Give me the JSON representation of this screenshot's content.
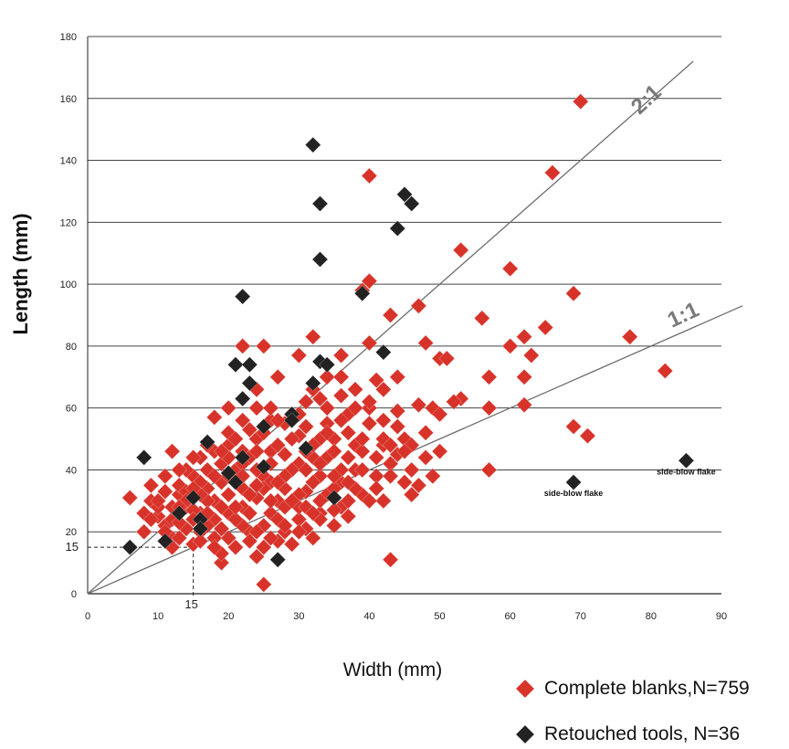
{
  "chart_data": {
    "type": "scatter",
    "xlabel": "Width (mm)",
    "ylabel": "Length (mm)",
    "xlim": [
      0,
      90
    ],
    "ylim": [
      0,
      180
    ],
    "xticks": [
      "0",
      "10",
      "20",
      "30",
      "40",
      "50",
      "60",
      "70",
      "80",
      "90"
    ],
    "yticks": [
      "0",
      "20",
      "40",
      "60",
      "80",
      "100",
      "120",
      "140",
      "160",
      "180"
    ],
    "grid": "horizontal",
    "legend_position": "bottom-right",
    "reference_lines": [
      {
        "label": "2:1",
        "slope": 2
      },
      {
        "label": "1:1",
        "slope": 1
      }
    ],
    "guide": {
      "x": 15,
      "y": 15,
      "xlabel": "15",
      "ylabel": "15"
    },
    "annotations": [
      {
        "text": "side-blow flake",
        "x": 69,
        "y": 36
      },
      {
        "text": "side-blow flake",
        "x": 85,
        "y": 43
      }
    ],
    "colors": {
      "complete": "#d8332a",
      "retouched": "#222222",
      "grid": "#444444",
      "ref_line": "#6d6d6d"
    },
    "series": [
      {
        "name": "Complete blanks,N=759",
        "color": "#d8332a",
        "points": [
          [
            70,
            159
          ],
          [
            40,
            135
          ],
          [
            66,
            136
          ],
          [
            53,
            111
          ],
          [
            60,
            105
          ],
          [
            40,
            101
          ],
          [
            39,
            98
          ],
          [
            69,
            97
          ],
          [
            47,
            93
          ],
          [
            43,
            90
          ],
          [
            56,
            89
          ],
          [
            65,
            86
          ],
          [
            62,
            83
          ],
          [
            77,
            83
          ],
          [
            32,
            83
          ],
          [
            60,
            80
          ],
          [
            22,
            80
          ],
          [
            25,
            80
          ],
          [
            40,
            81
          ],
          [
            48,
            81
          ],
          [
            63,
            77
          ],
          [
            50,
            76
          ],
          [
            51,
            76
          ],
          [
            30,
            77
          ],
          [
            36,
            77
          ],
          [
            82,
            72
          ],
          [
            62,
            70
          ],
          [
            57,
            70
          ],
          [
            44,
            70
          ],
          [
            41,
            69
          ],
          [
            27,
            70
          ],
          [
            34,
            70
          ],
          [
            62,
            61
          ],
          [
            53,
            63
          ],
          [
            57,
            60
          ],
          [
            49,
            60
          ],
          [
            47,
            61
          ],
          [
            44,
            59
          ],
          [
            40,
            60
          ],
          [
            20,
            60
          ],
          [
            69,
            54
          ],
          [
            71,
            51
          ],
          [
            57,
            40
          ],
          [
            43,
            11
          ],
          [
            25,
            3
          ],
          [
            19,
            10
          ],
          [
            42,
            30
          ],
          [
            45,
            36
          ],
          [
            46,
            32
          ],
          [
            43,
            42
          ],
          [
            38,
            48
          ],
          [
            30,
            51
          ],
          [
            36,
            36
          ],
          [
            32,
            44
          ],
          [
            42,
            48
          ],
          [
            20,
            48
          ],
          [
            16,
            44
          ],
          [
            12,
            46
          ],
          [
            9,
            30
          ],
          [
            6,
            31
          ],
          [
            8,
            26
          ],
          [
            23,
            53
          ],
          [
            18,
            57
          ],
          [
            33,
            63
          ],
          [
            24,
            66
          ],
          [
            36,
            70
          ],
          [
            31,
            62
          ],
          [
            28,
            45
          ],
          [
            26,
            46
          ],
          [
            24,
            31
          ],
          [
            21,
            36
          ],
          [
            17,
            34
          ],
          [
            14,
            28
          ],
          [
            11,
            22
          ],
          [
            13,
            32
          ],
          [
            15,
            38
          ],
          [
            19,
            42
          ],
          [
            22,
            28
          ],
          [
            18,
            24
          ],
          [
            16,
            20
          ],
          [
            12,
            18
          ],
          [
            10,
            25
          ],
          [
            14,
            40
          ],
          [
            20,
            32
          ],
          [
            25,
            38
          ],
          [
            30,
            42
          ],
          [
            35,
            50
          ],
          [
            40,
            55
          ],
          [
            38,
            40
          ],
          [
            33,
            38
          ],
          [
            28,
            34
          ],
          [
            26,
            26
          ],
          [
            23,
            20
          ],
          [
            21,
            15
          ],
          [
            18,
            18
          ],
          [
            15,
            16
          ],
          [
            19,
            13
          ],
          [
            22,
            22
          ],
          [
            27,
            30
          ],
          [
            31,
            33
          ],
          [
            34,
            44
          ],
          [
            37,
            52
          ],
          [
            39,
            46
          ],
          [
            41,
            38
          ],
          [
            36,
            28
          ],
          [
            33,
            26
          ],
          [
            30,
            24
          ],
          [
            28,
            20
          ],
          [
            25,
            15
          ],
          [
            24,
            12
          ],
          [
            29,
            16
          ],
          [
            32,
            18
          ],
          [
            35,
            22
          ],
          [
            37,
            25
          ],
          [
            39,
            32
          ],
          [
            44,
            45
          ],
          [
            45,
            50
          ],
          [
            42,
            56
          ],
          [
            37,
            58
          ],
          [
            34,
            55
          ],
          [
            31,
            54
          ],
          [
            29,
            58
          ],
          [
            26,
            56
          ],
          [
            24,
            50
          ],
          [
            22,
            46
          ],
          [
            20,
            44
          ],
          [
            17,
            40
          ],
          [
            16,
            36
          ],
          [
            13,
            35
          ],
          [
            11,
            33
          ],
          [
            9,
            35
          ],
          [
            10,
            28
          ],
          [
            12,
            24
          ],
          [
            14,
            21
          ],
          [
            16,
            26
          ],
          [
            18,
            30
          ],
          [
            20,
            26
          ],
          [
            22,
            34
          ],
          [
            24,
            40
          ],
          [
            26,
            36
          ],
          [
            28,
            28
          ],
          [
            30,
            32
          ],
          [
            32,
            36
          ],
          [
            34,
            32
          ],
          [
            36,
            40
          ],
          [
            38,
            34
          ],
          [
            40,
            30
          ],
          [
            42,
            50
          ],
          [
            44,
            54
          ],
          [
            46,
            48
          ],
          [
            48,
            52
          ],
          [
            50,
            58
          ],
          [
            52,
            62
          ],
          [
            27,
            48
          ],
          [
            29,
            40
          ],
          [
            31,
            46
          ],
          [
            33,
            50
          ],
          [
            35,
            46
          ],
          [
            23,
            44
          ],
          [
            21,
            40
          ],
          [
            19,
            36
          ],
          [
            17,
            30
          ],
          [
            15,
            27
          ],
          [
            13,
            23
          ],
          [
            11,
            20
          ],
          [
            8,
            20
          ],
          [
            9,
            24
          ],
          [
            14,
            33
          ],
          [
            18,
            46
          ],
          [
            20,
            52
          ],
          [
            22,
            56
          ],
          [
            24,
            60
          ],
          [
            26,
            60
          ],
          [
            28,
            55
          ],
          [
            30,
            58
          ],
          [
            32,
            66
          ],
          [
            34,
            60
          ],
          [
            36,
            64
          ],
          [
            38,
            66
          ],
          [
            40,
            62
          ],
          [
            42,
            66
          ],
          [
            30,
            28
          ],
          [
            27,
            24
          ],
          [
            25,
            22
          ],
          [
            23,
            26
          ],
          [
            21,
            24
          ],
          [
            19,
            21
          ],
          [
            17,
            22
          ],
          [
            15,
            24
          ],
          [
            13,
            18
          ],
          [
            12,
            15
          ],
          [
            16,
            17
          ],
          [
            18,
            15
          ],
          [
            20,
            18
          ],
          [
            23,
            17
          ],
          [
            27,
            17
          ],
          [
            31,
            21
          ],
          [
            33,
            30
          ],
          [
            35,
            34
          ],
          [
            37,
            44
          ],
          [
            39,
            50
          ],
          [
            41,
            44
          ],
          [
            43,
            48
          ],
          [
            45,
            46
          ],
          [
            26,
            42
          ],
          [
            28,
            38
          ],
          [
            24,
            46
          ],
          [
            22,
            42
          ],
          [
            20,
            38
          ],
          [
            18,
            38
          ],
          [
            16,
            32
          ],
          [
            14,
            30
          ],
          [
            12,
            28
          ],
          [
            10,
            30
          ],
          [
            11,
            38
          ],
          [
            13,
            40
          ],
          [
            15,
            44
          ],
          [
            17,
            48
          ],
          [
            19,
            46
          ],
          [
            21,
            50
          ],
          [
            25,
            52
          ],
          [
            27,
            56
          ],
          [
            29,
            50
          ],
          [
            31,
            40
          ],
          [
            33,
            42
          ],
          [
            35,
            38
          ],
          [
            37,
            36
          ],
          [
            39,
            40
          ],
          [
            41,
            34
          ],
          [
            43,
            38
          ],
          [
            46,
            40
          ],
          [
            48,
            44
          ],
          [
            50,
            46
          ],
          [
            49,
            38
          ],
          [
            47,
            35
          ],
          [
            21,
            28
          ],
          [
            23,
            32
          ],
          [
            25,
            34
          ],
          [
            27,
            36
          ],
          [
            29,
            30
          ],
          [
            31,
            28
          ],
          [
            33,
            24
          ],
          [
            35,
            27
          ],
          [
            37,
            30
          ],
          [
            32,
            48
          ],
          [
            34,
            52
          ],
          [
            36,
            56
          ],
          [
            38,
            60
          ],
          [
            24,
            20
          ],
          [
            26,
            18
          ],
          [
            28,
            22
          ],
          [
            30,
            20
          ],
          [
            32,
            26
          ],
          [
            22,
            38
          ],
          [
            24,
            35
          ],
          [
            26,
            30
          ],
          [
            17,
            26
          ],
          [
            19,
            28
          ],
          [
            15,
            34
          ],
          [
            13,
            28
          ]
        ]
      },
      {
        "name": "Retouched tools, N=36",
        "color": "#222222",
        "points": [
          [
            32,
            145
          ],
          [
            45,
            129
          ],
          [
            33,
            126
          ],
          [
            46,
            126
          ],
          [
            44,
            118
          ],
          [
            33,
            108
          ],
          [
            39,
            97
          ],
          [
            22,
            96
          ],
          [
            42,
            78
          ],
          [
            33,
            75
          ],
          [
            34,
            74
          ],
          [
            21,
            74
          ],
          [
            23,
            74
          ],
          [
            32,
            68
          ],
          [
            22,
            63
          ],
          [
            25,
            54
          ],
          [
            29,
            58
          ],
          [
            29,
            56
          ],
          [
            17,
            49
          ],
          [
            20,
            39
          ],
          [
            21,
            36
          ],
          [
            22,
            44
          ],
          [
            25,
            41
          ],
          [
            31,
            47
          ],
          [
            8,
            44
          ],
          [
            15,
            31
          ],
          [
            35,
            31
          ],
          [
            13,
            26
          ],
          [
            16,
            24
          ],
          [
            16,
            21
          ],
          [
            11,
            17
          ],
          [
            6,
            15
          ],
          [
            27,
            11
          ],
          [
            69,
            36
          ],
          [
            85,
            43
          ],
          [
            23,
            68
          ]
        ]
      }
    ]
  }
}
